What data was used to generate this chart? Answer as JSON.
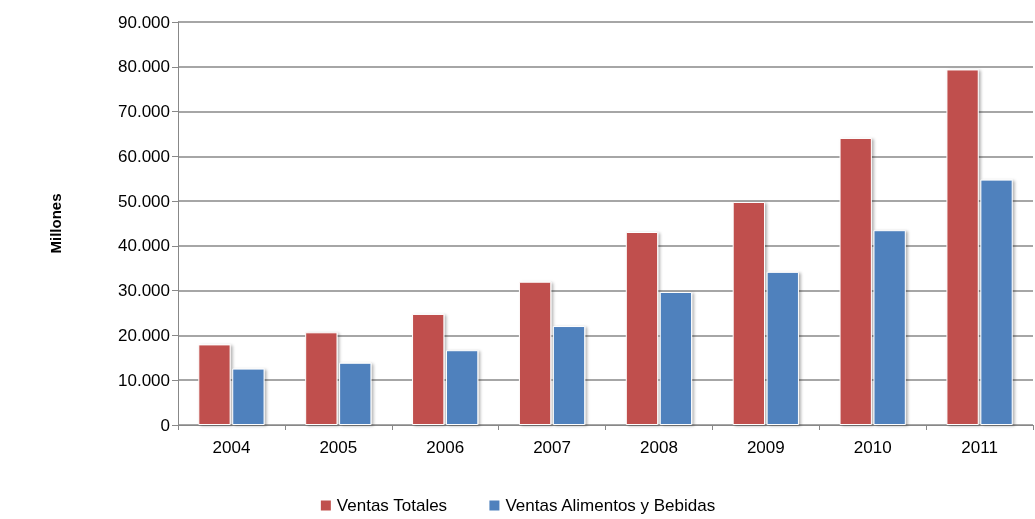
{
  "chart_data": {
    "type": "bar",
    "ylabel": "Millones",
    "categories": [
      "2004",
      "2005",
      "2006",
      "2007",
      "2008",
      "2009",
      "2010",
      "2011"
    ],
    "series": [
      {
        "name": "Ventas Totales",
        "color": "#c0504d",
        "values": [
          18000,
          20700,
          24800,
          32000,
          43100,
          49800,
          64100,
          79400
        ]
      },
      {
        "name": "Ventas Alimentos y Bebidas",
        "color": "#4f81bd",
        "values": [
          12600,
          13900,
          16700,
          22100,
          29700,
          34200,
          43500,
          54800
        ]
      }
    ],
    "ylim": [
      0,
      90000
    ],
    "yticks": [
      {
        "value": 0,
        "label": "0"
      },
      {
        "value": 10000,
        "label": "10.000"
      },
      {
        "value": 20000,
        "label": "20.000"
      },
      {
        "value": 30000,
        "label": "30.000"
      },
      {
        "value": 40000,
        "label": "40.000"
      },
      {
        "value": 50000,
        "label": "50.000"
      },
      {
        "value": 60000,
        "label": "60.000"
      },
      {
        "value": 70000,
        "label": "70.000"
      },
      {
        "value": 80000,
        "label": "80.000"
      },
      {
        "value": 90000,
        "label": "90.000"
      }
    ],
    "grid": "y",
    "legend": "bottom"
  }
}
